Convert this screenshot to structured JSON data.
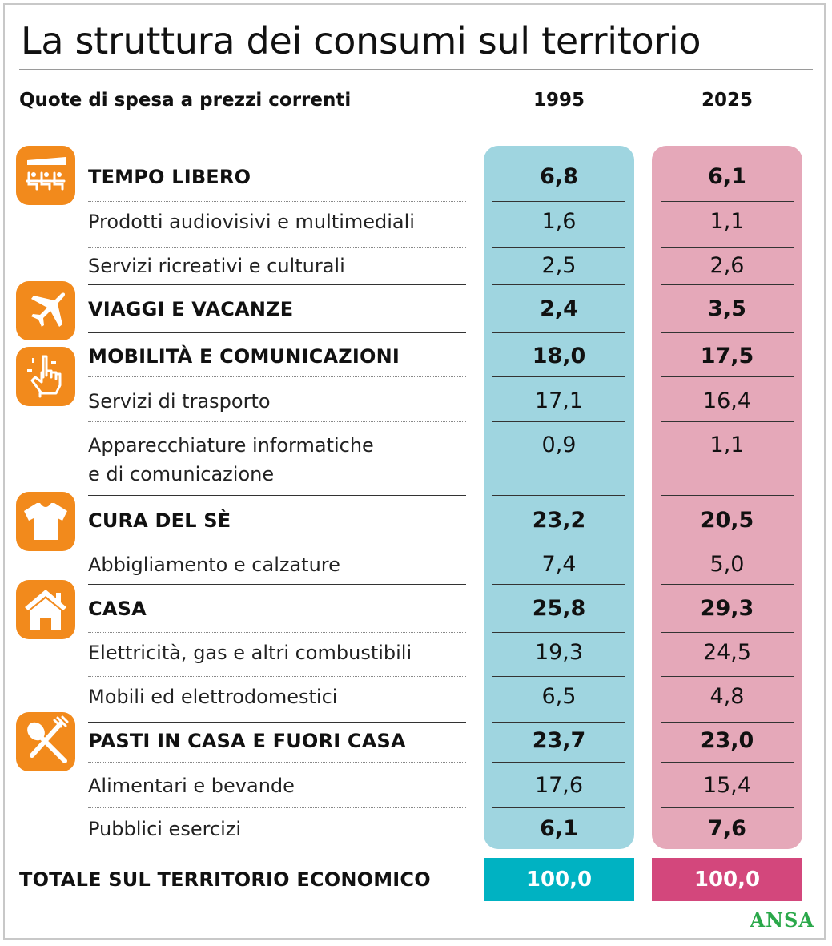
{
  "title": "La struttura dei consumi sul territorio",
  "header": {
    "subtitle": "Quote di spesa a prezzi correnti",
    "col_1995": "1995",
    "col_2025": "2025"
  },
  "rows": [
    {
      "label": "TEMPO LIBERO",
      "v1995": "6,8",
      "v2025": "6,1"
    },
    {
      "label": "Prodotti audiovisivi e multimediali",
      "v1995": "1,6",
      "v2025": "1,1"
    },
    {
      "label": "Servizi ricreativi e culturali",
      "v1995": "2,5",
      "v2025": "2,6"
    },
    {
      "label": "VIAGGI E VACANZE",
      "v1995": "2,4",
      "v2025": "3,5"
    },
    {
      "label": "MOBILITÀ E COMUNICAZIONI",
      "v1995": "18,0",
      "v2025": "17,5"
    },
    {
      "label": "Servizi di trasporto",
      "v1995": "17,1",
      "v2025": "16,4"
    },
    {
      "label_line1": "Apparecchiature informatiche",
      "label_line2": "e di comunicazione",
      "v1995": "0,9",
      "v2025": "1,1"
    },
    {
      "label": "CURA DEL SÈ",
      "v1995": "23,2",
      "v2025": "20,5"
    },
    {
      "label": "Abbigliamento e calzature",
      "v1995": "7,4",
      "v2025": "5,0"
    },
    {
      "label": "CASA",
      "v1995": "25,8",
      "v2025": "29,3"
    },
    {
      "label": "Elettricità, gas e altri combustibili",
      "v1995": "19,3",
      "v2025": "24,5"
    },
    {
      "label": "Mobili ed elettrodomestici",
      "v1995": "6,5",
      "v2025": "4,8"
    },
    {
      "label": "PASTI IN CASA E FUORI CASA",
      "v1995": "23,7",
      "v2025": "23,0"
    },
    {
      "label": "Alimentari e bevande",
      "v1995": "17,6",
      "v2025": "15,4"
    },
    {
      "label": "Pubblici esercizi",
      "v1995": "6,1",
      "v2025": "7,6"
    }
  ],
  "total": {
    "label": "TOTALE SUL TERRITORIO ECONOMICO",
    "v1995": "100,0",
    "v2025": "100,0"
  },
  "logo": "ANSA",
  "colors": {
    "col_1995": "#9fd5e0",
    "col_2025": "#e5a8b9",
    "total_1995": "#00b2c2",
    "total_2025": "#d3477c",
    "icon": "#f28a1c",
    "logo": "#2aa84a"
  },
  "icons": [
    "cinema-seats-icon",
    "airplane-icon",
    "hand-pointer-icon",
    "t-shirt-icon",
    "house-icon",
    "fork-spoon-icon"
  ],
  "chart_data": {
    "type": "table",
    "columns": [
      "1995",
      "2025"
    ],
    "rows": [
      {
        "category": "TEMPO LIBERO",
        "values": [
          6.8,
          6.1
        ],
        "level": 1
      },
      {
        "category": "Prodotti audiovisivi e multimediali",
        "values": [
          1.6,
          1.1
        ],
        "level": 2
      },
      {
        "category": "Servizi ricreativi e culturali",
        "values": [
          2.5,
          2.6
        ],
        "level": 2
      },
      {
        "category": "VIAGGI E VACANZE",
        "values": [
          2.4,
          3.5
        ],
        "level": 1
      },
      {
        "category": "MOBILITÀ E COMUNICAZIONI",
        "values": [
          18.0,
          17.5
        ],
        "level": 1
      },
      {
        "category": "Servizi di trasporto",
        "values": [
          17.1,
          16.4
        ],
        "level": 2
      },
      {
        "category": "Apparecchiature informatiche e di comunicazione",
        "values": [
          0.9,
          1.1
        ],
        "level": 2
      },
      {
        "category": "CURA DEL SÈ",
        "values": [
          23.2,
          20.5
        ],
        "level": 1
      },
      {
        "category": "Abbigliamento e calzature",
        "values": [
          7.4,
          5.0
        ],
        "level": 2
      },
      {
        "category": "CASA",
        "values": [
          25.8,
          29.3
        ],
        "level": 1
      },
      {
        "category": "Elettricità, gas e altri combustibili",
        "values": [
          19.3,
          24.5
        ],
        "level": 2
      },
      {
        "category": "Mobili ed elettrodomestici",
        "values": [
          6.5,
          4.8
        ],
        "level": 2
      },
      {
        "category": "PASTI IN CASA E FUORI CASA",
        "values": [
          23.7,
          23.0
        ],
        "level": 1
      },
      {
        "category": "Alimentari e bevande",
        "values": [
          17.6,
          15.4
        ],
        "level": 2
      },
      {
        "category": "Pubblici esercizi",
        "values": [
          6.1,
          7.6
        ],
        "level": 2
      }
    ],
    "total": {
      "category": "TOTALE SUL TERRITORIO ECONOMICO",
      "values": [
        100.0,
        100.0
      ]
    },
    "title": "La struttura dei consumi sul territorio",
    "subtitle": "Quote di spesa a prezzi correnti"
  }
}
